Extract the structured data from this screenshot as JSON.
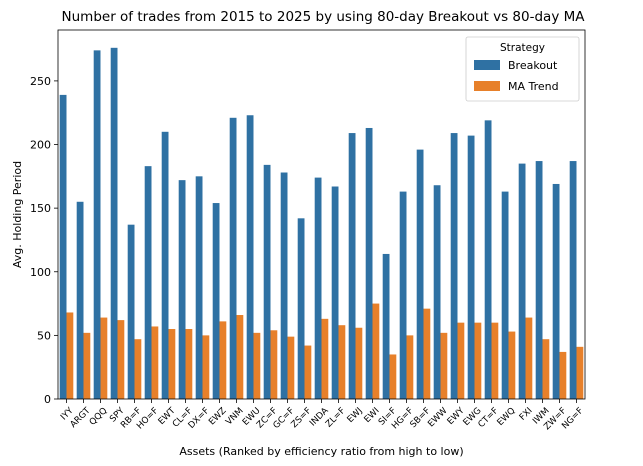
{
  "chart_data": {
    "type": "bar",
    "title": "Number of trades from 2015 to 2025 by using 80-day Breakout vs 80-day MA",
    "xlabel": "Assets (Ranked by efficiency ratio from high to low)",
    "ylabel": "Avg. Holding Period",
    "ylim": [
      0,
      290
    ],
    "yticks": [
      0,
      50,
      100,
      150,
      200,
      250
    ],
    "grid": false,
    "legend": {
      "title": "Strategy",
      "position": "top-right"
    },
    "categories": [
      "IYY",
      "ARGT",
      "QQQ",
      "SPY",
      "RB=F",
      "HO=F",
      "EWT",
      "CL=F",
      "DX=F",
      "EWZ",
      "VNM",
      "EWU",
      "ZC=F",
      "GC=F",
      "ZS=F",
      "INDA",
      "ZL=F",
      "EWJ",
      "EWI",
      "SI=F",
      "HG=F",
      "SB=F",
      "EWW",
      "EWY",
      "EWG",
      "CT=F",
      "EWQ",
      "FXI",
      "IWM",
      "ZW=F",
      "NG=F"
    ],
    "series": [
      {
        "name": "Breakout",
        "color": "#2f71a3",
        "values": [
          239,
          155,
          274,
          276,
          137,
          183,
          210,
          172,
          175,
          154,
          221,
          223,
          184,
          178,
          142,
          174,
          167,
          209,
          213,
          114,
          163,
          196,
          168,
          209,
          207,
          219,
          163,
          185,
          187,
          169,
          187
        ]
      },
      {
        "name": "MA Trend",
        "color": "#e7802a",
        "values": [
          68,
          52,
          64,
          62,
          47,
          57,
          55,
          55,
          50,
          61,
          66,
          52,
          54,
          49,
          42,
          63,
          58,
          56,
          75,
          35,
          50,
          71,
          52,
          60,
          60,
          60,
          53,
          64,
          47,
          37,
          41
        ]
      }
    ]
  }
}
